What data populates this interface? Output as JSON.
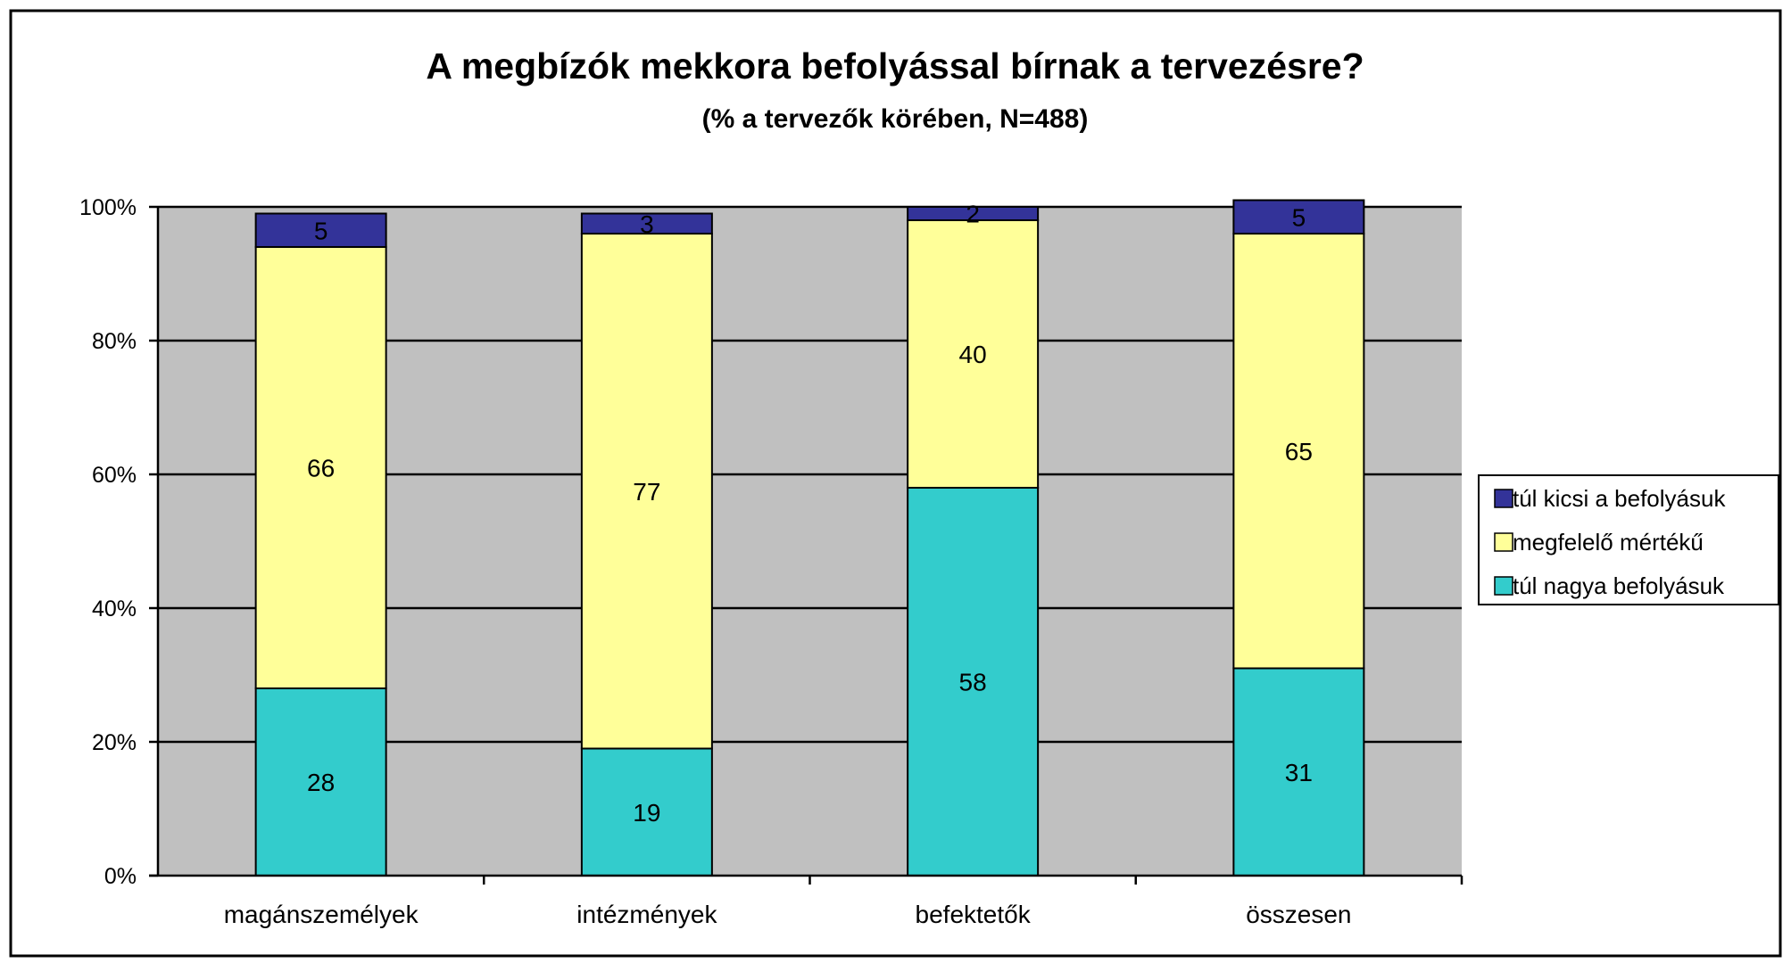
{
  "chart_data": {
    "type": "bar",
    "stacked": true,
    "title": "A megbízók mekkora befolyással bírnak a tervezésre?",
    "subtitle": "(% a tervezők körében, N=488)",
    "categories": [
      "magánszemélyek",
      "intézmények",
      "befektetők",
      "összesen"
    ],
    "series": [
      {
        "name": "túl nagya befolyásuk",
        "color": "#33cccc",
        "values": [
          28,
          19,
          58,
          31
        ]
      },
      {
        "name": "megfelelő mértékű",
        "color": "#ffff99",
        "values": [
          66,
          77,
          40,
          65
        ]
      },
      {
        "name": "túl kicsi a befolyásuk",
        "color": "#333399",
        "values": [
          5,
          3,
          2,
          5
        ]
      }
    ],
    "y_ticks": [
      "0%",
      "20%",
      "40%",
      "60%",
      "80%",
      "100%"
    ],
    "ylim": [
      0,
      100
    ],
    "grid": true,
    "plot_background": "#c0c0c0",
    "legend": {
      "position": "right",
      "order": [
        "túl kicsi a befolyásuk",
        "megfelelő mértékű",
        "túl nagya befolyásuk"
      ]
    }
  }
}
